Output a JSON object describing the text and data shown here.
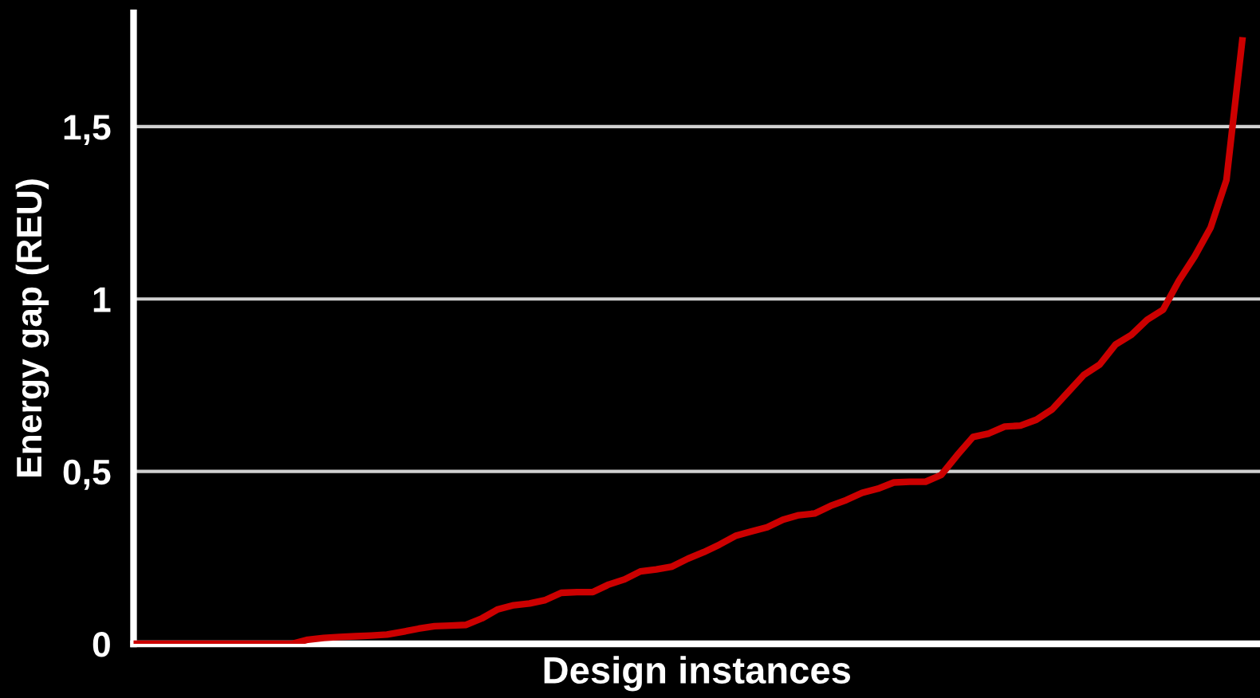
{
  "chart_data": {
    "type": "line",
    "xlabel": "Design instances",
    "ylabel": "Energy gap (REU)",
    "categories": [
      null,
      null,
      null,
      null,
      null,
      null,
      null,
      null,
      null,
      null,
      null,
      null,
      null,
      null,
      null,
      null,
      null,
      null,
      null,
      null,
      null,
      null,
      null,
      null,
      null,
      null,
      null,
      null,
      null,
      null,
      null,
      null,
      null,
      null,
      null,
      null,
      null,
      null,
      null,
      null,
      null,
      null,
      null,
      null,
      null,
      null,
      null,
      null,
      null,
      null,
      null,
      null,
      null,
      null,
      null,
      null,
      null,
      null,
      null,
      null,
      null,
      null,
      null,
      null,
      null,
      null,
      null,
      null,
      null,
      null,
      null
    ],
    "series": [
      {
        "color": "#cc0000",
        "values": [
          0,
          0,
          0,
          0,
          0,
          0,
          0,
          0,
          0,
          0,
          0,
          0.012,
          0.017,
          0.02,
          0.022,
          0.024,
          0.027,
          0.035,
          0.044,
          0.051,
          0.053,
          0.055,
          0.074,
          0.1,
          0.112,
          0.117,
          0.127,
          0.148,
          0.15,
          0.15,
          0.172,
          0.187,
          0.21,
          0.216,
          0.224,
          0.247,
          0.266,
          0.288,
          0.313,
          0.326,
          0.338,
          0.36,
          0.373,
          0.378,
          0.4,
          0.417,
          0.438,
          0.45,
          0.468,
          0.47,
          0.47,
          0.49,
          0.547,
          0.6,
          0.61,
          0.63,
          0.633,
          0.65,
          0.68,
          0.73,
          0.78,
          0.81,
          0.868,
          0.896,
          0.94,
          0.969,
          1.053,
          1.124,
          1.207,
          1.345,
          1.75
        ]
      }
    ],
    "ylim": [
      0,
      1.83
    ],
    "yticks": [
      0,
      {
        "value": 0.5,
        "label": "0,5"
      },
      1,
      {
        "value": 1.5,
        "label": "1,5"
      }
    ],
    "grid": "y",
    "tick_labels": "y",
    "marker": "none",
    "line_style": "solid",
    "legend": false
  }
}
